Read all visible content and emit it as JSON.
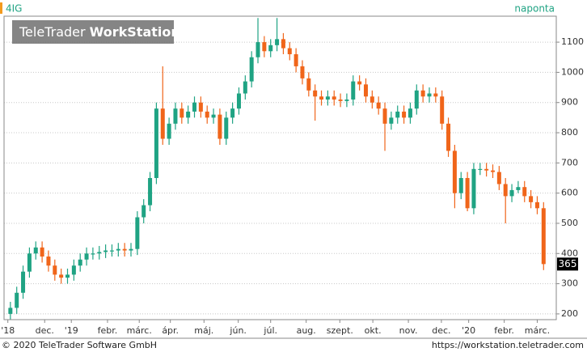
{
  "chart_data": {
    "type": "candlestick",
    "title": "4IG",
    "interval": "naponta",
    "watermark": {
      "brand": "TeleTrader",
      "product": "WorkStation"
    },
    "up_color": "#1fa383",
    "down_color": "#f0651a",
    "open": [
      200,
      220,
      270,
      340,
      400,
      420,
      390,
      360,
      330,
      320,
      330,
      360,
      380,
      400,
      400,
      405,
      410,
      410,
      415,
      410,
      415,
      520,
      560,
      650,
      880,
      780,
      830,
      880,
      850,
      870,
      900,
      870,
      850,
      860,
      780,
      850,
      880,
      930,
      970,
      1050,
      1100,
      1070,
      1090,
      1110,
      1080,
      1060,
      1020,
      980,
      940,
      920,
      910,
      920,
      910,
      905,
      910,
      970,
      960,
      920,
      900,
      880,
      830,
      850,
      870,
      850,
      880,
      940,
      920,
      930,
      920,
      830,
      740,
      600,
      650,
      550,
      680,
      680,
      675,
      670,
      630,
      590,
      610,
      620,
      590,
      570,
      550
    ],
    "high": [
      240,
      290,
      360,
      420,
      440,
      440,
      410,
      380,
      350,
      350,
      380,
      400,
      420,
      420,
      425,
      430,
      430,
      435,
      435,
      435,
      540,
      580,
      670,
      900,
      1020,
      850,
      900,
      900,
      890,
      920,
      920,
      890,
      880,
      880,
      870,
      900,
      950,
      990,
      1070,
      1180,
      1120,
      1110,
      1180,
      1130,
      1100,
      1080,
      1040,
      1000,
      960,
      940,
      940,
      940,
      930,
      930,
      990,
      990,
      980,
      940,
      920,
      900,
      870,
      890,
      890,
      900,
      960,
      960,
      950,
      950,
      940,
      850,
      760,
      670,
      670,
      700,
      700,
      700,
      695,
      690,
      650,
      630,
      640,
      640,
      610,
      590,
      570
    ],
    "low": [
      180,
      200,
      250,
      320,
      380,
      370,
      340,
      310,
      300,
      300,
      310,
      340,
      360,
      380,
      380,
      385,
      390,
      390,
      390,
      390,
      395,
      500,
      540,
      630,
      760,
      760,
      810,
      830,
      830,
      850,
      850,
      830,
      830,
      760,
      760,
      830,
      860,
      910,
      950,
      1030,
      1050,
      1050,
      1070,
      1060,
      1040,
      1000,
      960,
      920,
      840,
      890,
      890,
      890,
      885,
      885,
      890,
      940,
      900,
      880,
      860,
      740,
      810,
      830,
      830,
      830,
      860,
      900,
      900,
      900,
      810,
      720,
      550,
      580,
      540,
      530,
      660,
      655,
      650,
      610,
      500,
      570,
      600,
      570,
      550,
      530,
      345
    ],
    "close": [
      220,
      270,
      340,
      400,
      420,
      390,
      360,
      330,
      320,
      330,
      360,
      380,
      400,
      400,
      405,
      410,
      410,
      415,
      410,
      415,
      520,
      560,
      650,
      880,
      780,
      830,
      880,
      850,
      870,
      900,
      870,
      850,
      860,
      780,
      850,
      880,
      930,
      970,
      1050,
      1100,
      1070,
      1090,
      1110,
      1080,
      1060,
      1020,
      980,
      940,
      920,
      910,
      920,
      910,
      905,
      910,
      970,
      960,
      920,
      900,
      880,
      830,
      850,
      870,
      850,
      880,
      940,
      920,
      930,
      920,
      830,
      740,
      600,
      650,
      550,
      680,
      680,
      675,
      670,
      630,
      590,
      610,
      620,
      590,
      570,
      550,
      365
    ],
    "xlim": [
      -1,
      86
    ],
    "xticks": [
      {
        "value": -0.4,
        "label": "'18"
      },
      {
        "value": 5.4,
        "label": "dec."
      },
      {
        "value": 9.6,
        "label": "'19"
      },
      {
        "value": 15.3,
        "label": "febr."
      },
      {
        "value": 20.3,
        "label": "márc."
      },
      {
        "value": 25.2,
        "label": "ápr."
      },
      {
        "value": 30.5,
        "label": "máj."
      },
      {
        "value": 35.9,
        "label": "jún."
      },
      {
        "value": 41.0,
        "label": "júl."
      },
      {
        "value": 46.6,
        "label": "aug."
      },
      {
        "value": 51.9,
        "label": "szept."
      },
      {
        "value": 57.1,
        "label": "okt."
      },
      {
        "value": 62.7,
        "label": "nov."
      },
      {
        "value": 67.9,
        "label": "dec."
      },
      {
        "value": 72.2,
        "label": "'20"
      },
      {
        "value": 77.8,
        "label": "febr."
      },
      {
        "value": 83.0,
        "label": "márc."
      }
    ],
    "ylim": [
      181,
      1186
    ],
    "yticks": [
      200,
      300,
      400,
      500,
      600,
      700,
      800,
      900,
      1000,
      1100
    ],
    "grid": true
  },
  "footer": {
    "copyright": "© 2020 TeleTrader Software GmbH",
    "url": "https://workstation.teletrader.com"
  }
}
